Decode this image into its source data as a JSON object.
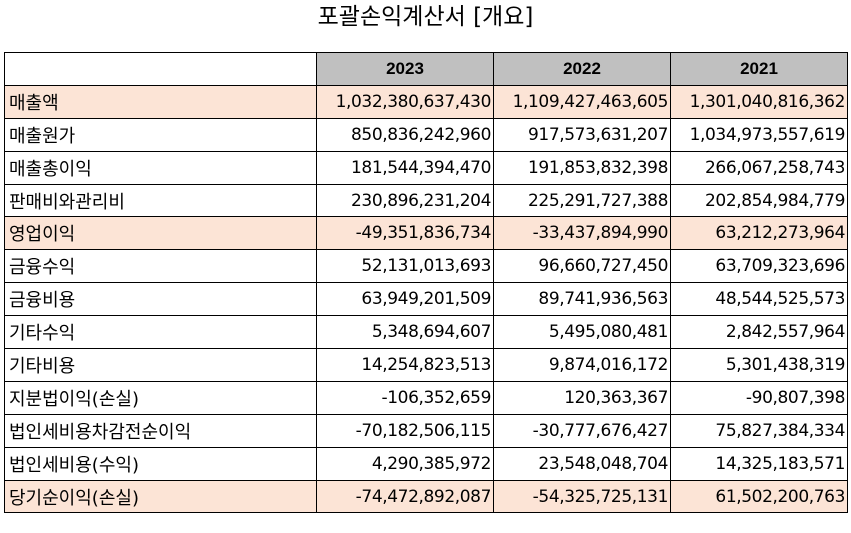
{
  "title": "포괄손익계산서 [개요]",
  "columns": [
    "",
    "2023",
    "2022",
    "2021"
  ],
  "rows": [
    {
      "label": "매출액",
      "values": [
        "1,032,380,637,430",
        "1,109,427,463,605",
        "1,301,040,816,362"
      ],
      "highlight": true
    },
    {
      "label": "매출원가",
      "values": [
        "850,836,242,960",
        "917,573,631,207",
        "1,034,973,557,619"
      ],
      "highlight": false
    },
    {
      "label": "매출총이익",
      "values": [
        "181,544,394,470",
        "191,853,832,398",
        "266,067,258,743"
      ],
      "highlight": false
    },
    {
      "label": "판매비와관리비",
      "values": [
        "230,896,231,204",
        "225,291,727,388",
        "202,854,984,779"
      ],
      "highlight": false
    },
    {
      "label": "영업이익",
      "values": [
        "-49,351,836,734",
        "-33,437,894,990",
        "63,212,273,964"
      ],
      "highlight": true
    },
    {
      "label": "금융수익",
      "values": [
        "52,131,013,693",
        "96,660,727,450",
        "63,709,323,696"
      ],
      "highlight": false
    },
    {
      "label": "금융비용",
      "values": [
        "63,949,201,509",
        "89,741,936,563",
        "48,544,525,573"
      ],
      "highlight": false
    },
    {
      "label": "기타수익",
      "values": [
        "5,348,694,607",
        "5,495,080,481",
        "2,842,557,964"
      ],
      "highlight": false
    },
    {
      "label": "기타비용",
      "values": [
        "14,254,823,513",
        "9,874,016,172",
        "5,301,438,319"
      ],
      "highlight": false
    },
    {
      "label": "지분법이익(손실)",
      "values": [
        "-106,352,659",
        "120,363,367",
        "-90,807,398"
      ],
      "highlight": false
    },
    {
      "label": "법인세비용차감전순이익",
      "values": [
        "-70,182,506,115",
        "-30,777,676,427",
        "75,827,384,334"
      ],
      "highlight": false
    },
    {
      "label": "법인세비용(수익)",
      "values": [
        "4,290,385,972",
        "23,548,048,704",
        "14,325,183,571"
      ],
      "highlight": false
    },
    {
      "label": "당기순이익(손실)",
      "values": [
        "-74,472,892,087",
        "-54,325,725,131",
        "61,502,200,763"
      ],
      "highlight": true
    }
  ],
  "colors": {
    "header_bg": "#c0c0c0",
    "highlight_bg": "#fce4d6",
    "border": "#000000"
  }
}
